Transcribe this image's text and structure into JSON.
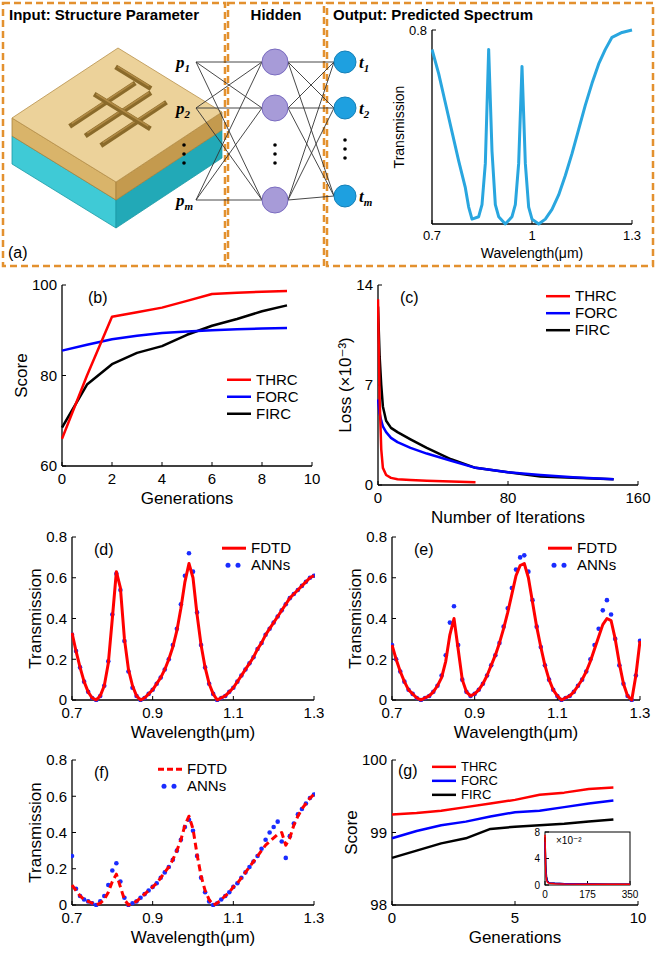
{
  "chart_data": [
    {
      "type": "line",
      "title": "(a)",
      "annotations": [
        "Input: Structure Parameter",
        "Hidden",
        "Output: Predicted Spectrum"
      ],
      "input_nodes": [
        "p1",
        "p2",
        "pm"
      ],
      "output_nodes": [
        "t1",
        "t2",
        "tm"
      ],
      "x_label": "Wavelength(μm)",
      "y_label": "Transmission",
      "x": [
        0.7,
        0.72,
        0.74,
        0.76,
        0.78,
        0.8,
        0.81,
        0.82,
        0.84,
        0.85,
        0.86,
        0.87,
        0.88,
        0.89,
        0.9,
        0.92,
        0.94,
        0.95,
        0.96,
        0.97,
        0.98,
        0.99,
        1,
        1.02,
        1.04,
        1.06,
        1.08,
        1.1,
        1.12,
        1.14,
        1.16,
        1.18,
        1.2,
        1.22,
        1.24,
        1.27,
        1.3
      ],
      "xlim": [
        0.7,
        1.3
      ],
      "xticks": [
        0.7,
        1,
        1.3
      ],
      "ylim": [
        0,
        0.8
      ],
      "yticks": [
        0.8
      ],
      "series": [
        {
          "color": "#29a6df",
          "values": [
            0.72,
            0.62,
            0.5,
            0.38,
            0.26,
            0.15,
            0.07,
            0.02,
            0.03,
            0.08,
            0.25,
            0.72,
            0.3,
            0.08,
            0.03,
            0,
            0.03,
            0.08,
            0.25,
            0.65,
            0.25,
            0.07,
            0.02,
            0,
            0.02,
            0.06,
            0.12,
            0.2,
            0.29,
            0.39,
            0.49,
            0.58,
            0.66,
            0.72,
            0.77,
            0.79,
            0.8
          ]
        }
      ]
    },
    {
      "type": "line",
      "title": "(b)",
      "x_label": "Generations",
      "y_label": "Score",
      "x": [
        0,
        1,
        2,
        3,
        4,
        5,
        6,
        7,
        8,
        9
      ],
      "xlim": [
        0,
        10
      ],
      "xticks": [
        0,
        2,
        4,
        6,
        8,
        10
      ],
      "ylim": [
        60,
        100
      ],
      "yticks": [
        60,
        80,
        100
      ],
      "legend": "right",
      "series": [
        {
          "name": "THRC",
          "color": "#ff0000",
          "values": [
            66,
            80,
            93,
            94,
            95,
            96.5,
            98,
            98.3,
            98.5,
            98.7
          ]
        },
        {
          "name": "FORC",
          "color": "#0000ff",
          "values": [
            85.5,
            86.8,
            88,
            88.8,
            89.4,
            89.7,
            90,
            90.2,
            90.4,
            90.5
          ]
        },
        {
          "name": "FIRC",
          "color": "#000000",
          "values": [
            68.5,
            78,
            82.5,
            85,
            86.5,
            89,
            91,
            92.5,
            94.2,
            95.5
          ]
        }
      ]
    },
    {
      "type": "line",
      "title": "(c)",
      "x_label": "Number of Iterations",
      "y_label": "Loss (×10⁻³)",
      "x": [
        0,
        1,
        2,
        3,
        5,
        8,
        12,
        20,
        30,
        45,
        60,
        80,
        100,
        120,
        145
      ],
      "xlim": [
        0,
        160
      ],
      "xticks": [
        0,
        80,
        160
      ],
      "ylim": [
        0,
        14
      ],
      "yticks": [
        0,
        7,
        14
      ],
      "legend": "upper right",
      "series": [
        {
          "name": "THRC",
          "color": "#ff0000",
          "values": [
            13,
            6,
            2.5,
            1.2,
            0.7,
            0.5,
            0.4,
            0.35,
            0.3,
            0.25,
            0.2,
            null,
            null,
            null,
            null
          ]
        },
        {
          "name": "FORC",
          "color": "#0000ff",
          "values": [
            6,
            5,
            4.5,
            4.1,
            3.7,
            3.3,
            3,
            2.6,
            2.2,
            1.7,
            1.2,
            0.9,
            0.7,
            0.55,
            0.4
          ]
        },
        {
          "name": "FIRC",
          "color": "#000000",
          "values": [
            12.5,
            9,
            7,
            5.5,
            4.5,
            4,
            3.7,
            3.2,
            2.6,
            1.8,
            1.2,
            0.9,
            0.6,
            0.5,
            0.4
          ]
        }
      ]
    },
    {
      "type": "line",
      "title": "(d)",
      "x_label": "Wavelength(μm)",
      "y_label": "Transmission",
      "x": [
        0.7,
        0.71,
        0.72,
        0.73,
        0.74,
        0.75,
        0.76,
        0.77,
        0.78,
        0.79,
        0.8,
        0.81,
        0.82,
        0.83,
        0.84,
        0.85,
        0.86,
        0.87,
        0.88,
        0.89,
        0.9,
        0.91,
        0.92,
        0.93,
        0.94,
        0.95,
        0.96,
        0.97,
        0.98,
        0.99,
        1,
        1.01,
        1.02,
        1.03,
        1.04,
        1.05,
        1.06,
        1.07,
        1.08,
        1.09,
        1.1,
        1.11,
        1.12,
        1.13,
        1.14,
        1.15,
        1.16,
        1.17,
        1.18,
        1.19,
        1.2,
        1.21,
        1.22,
        1.23,
        1.24,
        1.25,
        1.26,
        1.27,
        1.28,
        1.29,
        1.3
      ],
      "xlim": [
        0.7,
        1.3
      ],
      "xticks": [
        0.7,
        0.9,
        1.1,
        1.3
      ],
      "ylim": [
        0,
        0.8
      ],
      "yticks": [
        0,
        0.2,
        0.4,
        0.6,
        0.8
      ],
      "legend": "upper right",
      "series": [
        {
          "name": "FDTD",
          "color": "#ff0000",
          "type": "line",
          "line_style": "solid",
          "values": [
            0.33,
            0.24,
            0.16,
            0.09,
            0.04,
            0.01,
            0,
            0.02,
            0.07,
            0.18,
            0.4,
            0.63,
            0.55,
            0.3,
            0.15,
            0.07,
            0.02,
            0,
            0.01,
            0.03,
            0.05,
            0.08,
            0.11,
            0.15,
            0.2,
            0.26,
            0.34,
            0.45,
            0.58,
            0.67,
            0.6,
            0.42,
            0.27,
            0.16,
            0.08,
            0.03,
            0,
            0.01,
            0.02,
            0.04,
            0.06,
            0.09,
            0.12,
            0.15,
            0.18,
            0.21,
            0.25,
            0.28,
            0.32,
            0.35,
            0.38,
            0.41,
            0.44,
            0.47,
            0.5,
            0.52,
            0.54,
            0.56,
            0.58,
            0.6,
            0.61
          ]
        },
        {
          "name": "ANNs",
          "color": "#1a2cff",
          "type": "scatter",
          "marker": "circle",
          "values": [
            0.32,
            0.24,
            0.16,
            0.09,
            0.04,
            0.01,
            0,
            0.02,
            0.07,
            0.19,
            0.42,
            0.62,
            0.54,
            0.29,
            0.14,
            0.06,
            0.02,
            0,
            0.01,
            0.03,
            0.05,
            0.08,
            0.11,
            0.15,
            0.2,
            0.27,
            0.35,
            0.47,
            0.61,
            0.72,
            0.63,
            0.43,
            0.27,
            0.16,
            0.08,
            0.03,
            0,
            0.01,
            0.02,
            0.04,
            0.06,
            0.09,
            0.12,
            0.15,
            0.18,
            0.21,
            0.25,
            0.28,
            0.32,
            0.35,
            0.38,
            0.41,
            0.44,
            0.47,
            0.5,
            0.52,
            0.54,
            0.56,
            0.58,
            0.6,
            0.61
          ]
        }
      ]
    },
    {
      "type": "line",
      "title": "(e)",
      "x_label": "Wavelength(μm)",
      "y_label": "Transmission",
      "x": [
        0.7,
        0.71,
        0.72,
        0.73,
        0.74,
        0.75,
        0.76,
        0.77,
        0.78,
        0.79,
        0.8,
        0.81,
        0.82,
        0.83,
        0.84,
        0.85,
        0.86,
        0.87,
        0.88,
        0.89,
        0.9,
        0.91,
        0.92,
        0.93,
        0.94,
        0.95,
        0.96,
        0.97,
        0.98,
        0.99,
        1,
        1.01,
        1.02,
        1.03,
        1.04,
        1.05,
        1.06,
        1.07,
        1.08,
        1.09,
        1.1,
        1.11,
        1.12,
        1.13,
        1.14,
        1.15,
        1.16,
        1.17,
        1.18,
        1.19,
        1.2,
        1.21,
        1.22,
        1.23,
        1.24,
        1.25,
        1.26,
        1.27,
        1.28,
        1.29,
        1.3
      ],
      "xlim": [
        0.7,
        1.3
      ],
      "xticks": [
        0.7,
        0.9,
        1.1,
        1.3
      ],
      "ylim": [
        0,
        0.8
      ],
      "yticks": [
        0,
        0.2,
        0.4,
        0.6,
        0.8
      ],
      "legend": "upper right",
      "series": [
        {
          "name": "FDTD",
          "color": "#ff0000",
          "type": "line",
          "line_style": "solid",
          "values": [
            0.27,
            0.2,
            0.14,
            0.09,
            0.05,
            0.03,
            0.01,
            0,
            0.01,
            0.02,
            0.04,
            0.07,
            0.11,
            0.19,
            0.32,
            0.4,
            0.25,
            0.1,
            0.04,
            0.02,
            0.03,
            0.05,
            0.08,
            0.12,
            0.17,
            0.22,
            0.28,
            0.35,
            0.43,
            0.52,
            0.61,
            0.66,
            0.67,
            0.6,
            0.48,
            0.36,
            0.26,
            0.17,
            0.1,
            0.05,
            0.02,
            0,
            0.01,
            0.02,
            0.04,
            0.07,
            0.1,
            0.14,
            0.19,
            0.25,
            0.31,
            0.37,
            0.4,
            0.39,
            0.3,
            0.18,
            0.08,
            0.02,
            0,
            0.12,
            0.29
          ]
        },
        {
          "name": "ANNs",
          "color": "#1a2cff",
          "type": "scatter",
          "marker": "circle",
          "values": [
            0.27,
            0.2,
            0.14,
            0.09,
            0.05,
            0.03,
            0.01,
            0,
            0.01,
            0.02,
            0.04,
            0.07,
            0.12,
            0.22,
            0.38,
            0.46,
            0.27,
            0.1,
            0.04,
            0.02,
            0.03,
            0.05,
            0.08,
            0.12,
            0.17,
            0.22,
            0.28,
            0.36,
            0.45,
            0.55,
            0.64,
            0.7,
            0.71,
            0.63,
            0.49,
            0.36,
            0.26,
            0.17,
            0.1,
            0.05,
            0.02,
            0,
            0.01,
            0.02,
            0.04,
            0.07,
            0.1,
            0.14,
            0.2,
            0.27,
            0.35,
            0.44,
            0.49,
            0.42,
            0.3,
            0.17,
            0.08,
            0.02,
            0,
            0.12,
            0.29
          ]
        }
      ]
    },
    {
      "type": "line",
      "title": "(f)",
      "x_label": "Wavelength(μm)",
      "y_label": "Transmission",
      "x": [
        0.7,
        0.71,
        0.72,
        0.73,
        0.74,
        0.75,
        0.76,
        0.77,
        0.78,
        0.79,
        0.8,
        0.81,
        0.82,
        0.83,
        0.84,
        0.85,
        0.86,
        0.87,
        0.88,
        0.89,
        0.9,
        0.91,
        0.92,
        0.93,
        0.94,
        0.95,
        0.96,
        0.97,
        0.98,
        0.99,
        1,
        1.01,
        1.02,
        1.03,
        1.04,
        1.05,
        1.06,
        1.07,
        1.08,
        1.09,
        1.1,
        1.11,
        1.12,
        1.13,
        1.14,
        1.15,
        1.16,
        1.17,
        1.18,
        1.19,
        1.2,
        1.21,
        1.22,
        1.23,
        1.24,
        1.25,
        1.26,
        1.27,
        1.28,
        1.29,
        1.3
      ],
      "xlim": [
        0.7,
        1.3
      ],
      "xticks": [
        0.7,
        0.9,
        1.1,
        1.3
      ],
      "ylim": [
        0,
        0.8
      ],
      "yticks": [
        0,
        0.2,
        0.4,
        0.6,
        0.8
      ],
      "legend": "upper center",
      "series": [
        {
          "name": "FDTD",
          "color": "#ff0000",
          "type": "line",
          "line_style": "dashed",
          "values": [
            0.11,
            0.08,
            0.05,
            0.03,
            0.02,
            0.01,
            0,
            0.01,
            0.03,
            0.07,
            0.13,
            0.17,
            0.1,
            0.03,
            0,
            0.01,
            0.02,
            0.04,
            0.06,
            0.08,
            0.1,
            0.12,
            0.15,
            0.18,
            0.21,
            0.25,
            0.3,
            0.36,
            0.44,
            0.49,
            0.42,
            0.28,
            0.16,
            0.08,
            0.03,
            0,
            0.01,
            0.03,
            0.05,
            0.07,
            0.1,
            0.12,
            0.15,
            0.18,
            0.21,
            0.24,
            0.27,
            0.3,
            0.33,
            0.35,
            0.37,
            0.39,
            0.4,
            0.33,
            0.37,
            0.44,
            0.49,
            0.53,
            0.56,
            0.59,
            0.61
          ]
        },
        {
          "name": "ANNs",
          "color": "#1a2cff",
          "type": "scatter",
          "marker": "circle",
          "values": [
            0.27,
            0.09,
            0.05,
            0.03,
            0.02,
            0.01,
            0,
            0.02,
            0.05,
            0.11,
            0.19,
            0.23,
            0.13,
            0.04,
            0,
            0.01,
            0.02,
            0.04,
            0.06,
            0.08,
            0.1,
            0.12,
            0.15,
            0.18,
            0.21,
            0.25,
            0.3,
            0.36,
            0.43,
            0.47,
            0.41,
            0.27,
            0.15,
            0.07,
            0.02,
            0,
            0.01,
            0.03,
            0.05,
            0.07,
            0.1,
            0.12,
            0.15,
            0.18,
            0.21,
            0.24,
            0.27,
            0.31,
            0.36,
            0.4,
            0.43,
            0.46,
            0.35,
            0.26,
            0.38,
            0.45,
            0.5,
            0.53,
            0.56,
            0.59,
            0.61
          ]
        }
      ]
    },
    {
      "type": "line",
      "title": "(g)",
      "x_label": "Generations",
      "y_label": "Score",
      "x": [
        0,
        1,
        2,
        3,
        4,
        5,
        6,
        7,
        8,
        9
      ],
      "xlim": [
        0,
        10
      ],
      "xticks": [
        0,
        5,
        10
      ],
      "ylim": [
        98,
        100
      ],
      "yticks": [
        98,
        99,
        100
      ],
      "legend": "upper left",
      "series": [
        {
          "name": "THRC",
          "color": "#ff0000",
          "values": [
            99.25,
            99.27,
            99.3,
            99.35,
            99.4,
            99.45,
            99.52,
            99.55,
            99.6,
            99.62
          ]
        },
        {
          "name": "FORC",
          "color": "#0000ff",
          "values": [
            98.92,
            99.02,
            99.1,
            99.15,
            99.22,
            99.28,
            99.3,
            99.35,
            99.4,
            99.44
          ]
        },
        {
          "name": "FIRC",
          "color": "#000000",
          "values": [
            98.65,
            98.75,
            98.85,
            98.92,
            99.05,
            99.08,
            99.1,
            99.12,
            99.15,
            99.18
          ]
        }
      ]
    },
    {
      "type": "line",
      "annotations": [
        "×10⁻²"
      ],
      "x": [
        0,
        3,
        6,
        10,
        15,
        20,
        40,
        80,
        175,
        260,
        350
      ],
      "xlim": [
        0,
        350
      ],
      "xticks": [
        0,
        175,
        350
      ],
      "ylim": [
        0,
        8
      ],
      "yticks": [
        0,
        4,
        8
      ],
      "series": [
        {
          "color": "#ff0000",
          "values": [
            7.6,
            2,
            0.8,
            0.4,
            0.3,
            0.25,
            0.2,
            0.15,
            0.12,
            0.1,
            0.1
          ]
        },
        {
          "color": "#0000ff",
          "values": [
            6.5,
            2.6,
            1.1,
            0.55,
            0.4,
            0.3,
            0.25,
            0.2,
            0.15,
            0.12,
            0.1
          ]
        },
        {
          "color": "#000000",
          "values": [
            7.2,
            3,
            1.3,
            0.6,
            0.4,
            0.32,
            0.26,
            0.2,
            0.15,
            0.12,
            0.1
          ]
        }
      ]
    }
  ]
}
